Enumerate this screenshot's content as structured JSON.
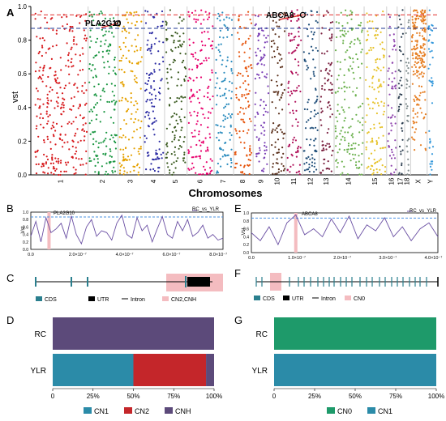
{
  "panels": {
    "A": {
      "letter": "A",
      "ylabel": "vst",
      "xlabel": "Chromosomes",
      "genes": [
        "PLA2G10",
        "ABCA8"
      ]
    },
    "B": {
      "letter": "B",
      "gene": "PLA2G10",
      "legend": "RC_vs_YLR",
      "ylabel": "Vst"
    },
    "C": {
      "letter": "C"
    },
    "D": {
      "letter": "D"
    },
    "E": {
      "letter": "E",
      "gene": "ABCA8",
      "legend": "RC_vs_YLR",
      "ylabel": "Vst"
    },
    "F": {
      "letter": "F"
    },
    "G": {
      "letter": "G"
    }
  },
  "legend_C": {
    "cds": "CDS",
    "utr": "UTR",
    "intron": "Intron",
    "cn": "CN2,CNH"
  },
  "legend_F": {
    "cds": "CDS",
    "utr": "UTR",
    "intron": "Intron",
    "cn": "CN0"
  },
  "colors": {
    "cds": "#2a7f8e",
    "utr": "#000000",
    "cn_region": "#f4bcc0",
    "threshold": "#e0302e",
    "threshold2": "#1f3a93",
    "line": "#6a4fa3",
    "dash": "#4a90e2"
  },
  "chart_data": [
    {
      "type": "scatter",
      "ylabel": "vst",
      "xlabel": "Chromosomes",
      "ylim": [
        0,
        1.0
      ],
      "yticks": [
        "0.0",
        "0.2",
        "0.4",
        "0.6",
        "0.8",
        "1.0"
      ],
      "categories": [
        "1",
        "2",
        "3",
        "4",
        "5",
        "6",
        "7",
        "8",
        "9",
        "10",
        "11",
        "12",
        "13",
        "14",
        "15",
        "16",
        "17",
        "18",
        "X",
        "Y"
      ],
      "thresholds": [
        0.95,
        0.87
      ],
      "annotations": [
        {
          "label": "PLA2G10",
          "chrom": "2",
          "value": 0.9
        },
        {
          "label": "ABCA8",
          "chrom": "12",
          "value": 0.95
        }
      ]
    },
    {
      "type": "line",
      "legend": "RC_vs_YLR",
      "ylabel": "Vst",
      "ylim": [
        0,
        1.0
      ],
      "yticks": [
        "0.0",
        "0.2",
        "0.4",
        "0.6",
        "0.8",
        "1.0"
      ],
      "xticks": [
        "0.0",
        "2.0×10⁻⁷",
        "4.0×10⁻⁷",
        "6.0×10⁻⁷",
        "8.0×10⁻⁷"
      ],
      "xlim": [
        0,
        9.5
      ],
      "threshold": 0.87,
      "x": [
        0,
        0.25,
        0.5,
        0.75,
        1,
        1.25,
        1.5,
        1.75,
        2,
        2.25,
        2.5,
        2.75,
        3,
        3.25,
        3.5,
        3.75,
        4,
        4.25,
        4.5,
        4.75,
        5,
        5.25,
        5.5,
        5.75,
        6,
        6.25,
        6.5,
        6.75,
        7,
        7.25,
        7.5,
        7.75,
        8,
        8.25,
        8.5,
        8.75,
        9,
        9.25,
        9.5
      ],
      "values": [
        0.35,
        0.75,
        0.2,
        0.85,
        0.45,
        0.55,
        0.7,
        0.3,
        0.9,
        0.4,
        0.15,
        0.6,
        0.8,
        0.35,
        0.5,
        0.45,
        0.25,
        0.7,
        0.92,
        0.4,
        0.3,
        0.85,
        0.5,
        0.65,
        0.2,
        0.55,
        0.88,
        0.4,
        0.3,
        0.75,
        0.5,
        0.8,
        0.35,
        0.45,
        0.65,
        0.3,
        0.4,
        0.25,
        0.3
      ]
    },
    {
      "type": "bar",
      "orientation": "horizontal",
      "stacked": true,
      "categories": [
        "RC",
        "YLR"
      ],
      "xticks": [
        "0",
        "25%",
        "50%",
        "75%",
        "100%"
      ],
      "series": [
        {
          "name": "CN1",
          "color": "#2b8ba8",
          "values": [
            0,
            50
          ]
        },
        {
          "name": "CN2",
          "color": "#c4262a",
          "values": [
            0,
            45
          ]
        },
        {
          "name": "CNH",
          "color": "#5c4a7a",
          "values": [
            100,
            5
          ]
        }
      ]
    },
    {
      "type": "line",
      "legend": "RC_vs_YLR",
      "ylabel": "Vst",
      "ylim": [
        0,
        1.0
      ],
      "yticks": [
        "0.0",
        "0.2",
        "0.4",
        "0.6",
        "0.8",
        "1.0"
      ],
      "xticks": [
        "0.0",
        "1.0×10⁻⁷",
        "2.0×10⁻⁷",
        "3.0×10⁻⁷",
        "4.0×10⁻⁷"
      ],
      "xlim": [
        0,
        4.2
      ],
      "threshold": 0.87,
      "x": [
        0,
        0.2,
        0.4,
        0.6,
        0.8,
        1.0,
        1.2,
        1.4,
        1.6,
        1.8,
        2.0,
        2.2,
        2.4,
        2.6,
        2.8,
        3.0,
        3.2,
        3.4,
        3.6,
        3.8,
        4.0,
        4.2
      ],
      "values": [
        0.5,
        0.3,
        0.65,
        0.2,
        0.75,
        0.95,
        0.45,
        0.6,
        0.4,
        0.85,
        0.5,
        0.92,
        0.35,
        0.7,
        0.55,
        0.88,
        0.4,
        0.65,
        0.3,
        0.6,
        0.75,
        0.4
      ]
    },
    {
      "type": "bar",
      "orientation": "horizontal",
      "stacked": true,
      "categories": [
        "RC",
        "YLR"
      ],
      "xticks": [
        "0",
        "25%",
        "50%",
        "75%",
        "100%"
      ],
      "series": [
        {
          "name": "CN0",
          "color": "#1e9a6a",
          "values": [
            100,
            0
          ]
        },
        {
          "name": "CN1",
          "color": "#2b8ba8",
          "values": [
            0,
            100
          ]
        }
      ]
    }
  ]
}
